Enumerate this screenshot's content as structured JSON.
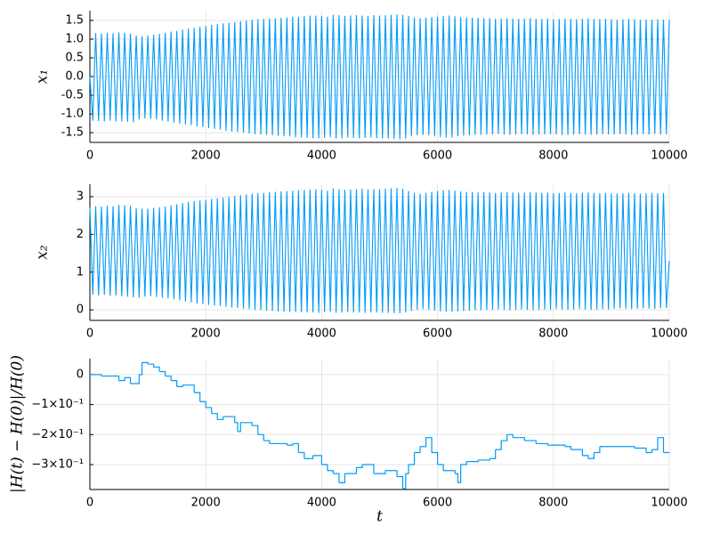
{
  "chart_data": [
    {
      "type": "line",
      "ylabel": "x₁",
      "color": "#009af9",
      "grid": true,
      "x": [
        0,
        50,
        100,
        150,
        200,
        250,
        300,
        350,
        400,
        450,
        500,
        550,
        600,
        650,
        700,
        750,
        800,
        850,
        900,
        950,
        1000,
        1050,
        1100,
        1150,
        1200,
        1250,
        1300,
        1350,
        1400,
        1450,
        1500,
        1550,
        1600,
        1650,
        1700,
        1750,
        1800,
        1850,
        1900,
        1950,
        2000,
        2050,
        2100,
        2150,
        2200,
        2250,
        2300,
        2350,
        2400,
        2450,
        2500,
        2550,
        2600,
        2650,
        2700,
        2750,
        2800,
        2850,
        2900,
        2950,
        3000,
        3050,
        3100,
        3150,
        3200,
        3250,
        3300,
        3350,
        3400,
        3450,
        3500,
        3550,
        3600,
        3650,
        3700,
        3750,
        3800,
        3850,
        3900,
        3950,
        4000,
        4050,
        4100,
        4150,
        4200,
        4250,
        4300,
        4350,
        4400,
        4450,
        4500,
        4550,
        4600,
        4650,
        4700,
        4750,
        4800,
        4850,
        4900,
        4950,
        5000,
        5050,
        5100,
        5150,
        5200,
        5250,
        5300,
        5350,
        5400,
        5450,
        5500,
        5550,
        5600,
        5650,
        5700,
        5750,
        5800,
        5850,
        5900,
        5950,
        6000,
        6050,
        6100,
        6150,
        6200,
        6250,
        6300,
        6350,
        6400,
        6450,
        6500,
        6550,
        6600,
        6650,
        6700,
        6750,
        6800,
        6850,
        6900,
        6950,
        7000,
        7050,
        7100,
        7150,
        7200,
        7250,
        7300,
        7350,
        7400,
        7450,
        7500,
        7550,
        7600,
        7650,
        7700,
        7750,
        7800,
        7850,
        7900,
        7950,
        8000,
        8050,
        8100,
        8150,
        8200,
        8250,
        8300,
        8350,
        8400,
        8450,
        8500,
        8550,
        8600,
        8650,
        8700,
        8750,
        8800,
        8850,
        8900,
        8950,
        9000,
        9050,
        9100,
        9150,
        9200,
        9250,
        9300,
        9350,
        9400,
        9450,
        9500,
        9550,
        9600,
        9650,
        9700,
        9750,
        9800,
        9850,
        9900,
        9950,
        10000
      ],
      "values": [
        0,
        -1.18,
        1.16,
        -1.19,
        1.15,
        -1.2,
        1.17,
        -1.18,
        1.16,
        -1.2,
        1.18,
        -1.2,
        1.17,
        -1.21,
        1.15,
        -1.22,
        1.1,
        -1.15,
        1.08,
        -1.12,
        1.1,
        -1.13,
        1.12,
        -1.15,
        1.14,
        -1.18,
        1.17,
        -1.2,
        1.2,
        -1.23,
        1.22,
        -1.26,
        1.25,
        -1.28,
        1.28,
        -1.3,
        1.3,
        -1.33,
        1.33,
        -1.35,
        1.35,
        -1.38,
        1.38,
        -1.4,
        1.4,
        -1.42,
        1.42,
        -1.45,
        1.44,
        -1.47,
        1.46,
        -1.48,
        1.48,
        -1.5,
        1.5,
        -1.52,
        1.52,
        -1.54,
        1.53,
        -1.55,
        1.54,
        -1.56,
        1.55,
        -1.57,
        1.56,
        -1.58,
        1.57,
        -1.6,
        1.58,
        -1.6,
        1.6,
        -1.62,
        1.6,
        -1.63,
        1.62,
        -1.64,
        1.63,
        -1.65,
        1.63,
        -1.65,
        1.62,
        -1.64,
        1.6,
        -1.62,
        1.65,
        -1.66,
        1.64,
        -1.65,
        1.62,
        -1.63,
        1.63,
        -1.64,
        1.64,
        -1.65,
        1.63,
        -1.64,
        1.62,
        -1.63,
        1.64,
        -1.65,
        1.63,
        -1.65,
        1.64,
        -1.66,
        1.65,
        -1.67,
        1.66,
        -1.68,
        1.65,
        -1.66,
        1.62,
        -1.6,
        1.58,
        -1.57,
        1.56,
        -1.56,
        1.57,
        -1.57,
        1.59,
        -1.6,
        1.6,
        -1.62,
        1.62,
        -1.63,
        1.63,
        -1.63,
        1.61,
        -1.6,
        1.59,
        -1.58,
        1.58,
        -1.57,
        1.57,
        -1.56,
        1.57,
        -1.56,
        1.56,
        -1.55,
        1.56,
        -1.55,
        1.55,
        -1.54,
        1.55,
        -1.55,
        1.56,
        -1.56,
        1.55,
        -1.55,
        1.54,
        -1.54,
        1.55,
        -1.55,
        1.56,
        -1.56,
        1.55,
        -1.55,
        1.54,
        -1.55,
        1.55,
        -1.55,
        1.53,
        -1.55,
        1.54,
        -1.56,
        1.55,
        -1.56,
        1.54,
        -1.55,
        1.53,
        -1.54,
        1.54,
        -1.55,
        1.55,
        -1.56,
        1.54,
        -1.55,
        1.53,
        -1.54,
        1.54,
        -1.55,
        1.53,
        -1.55,
        1.52,
        -1.54,
        1.53,
        -1.55,
        1.54,
        -1.56,
        1.53,
        -1.55,
        1.52,
        -1.54,
        1.53,
        -1.55,
        1.52,
        -1.53,
        1.53,
        -1.55,
        1.52,
        -1.54,
        1.52
      ],
      "xlim": [
        0,
        10000
      ],
      "xticks": [
        0,
        2000,
        4000,
        6000,
        8000,
        10000
      ],
      "ylim": [
        -1.76,
        1.76
      ],
      "yticks": [
        1.5,
        {
          "value": 1,
          "label": "1.0"
        },
        0.5,
        {
          "value": 0,
          "label": "0.0"
        },
        -0.5,
        {
          "value": -1,
          "label": "-1.0"
        },
        -1.5
      ]
    },
    {
      "type": "line",
      "ylabel": "x₂",
      "color": "#009af9",
      "grid": true,
      "x": [
        0,
        50,
        100,
        150,
        200,
        250,
        300,
        350,
        400,
        450,
        500,
        550,
        600,
        650,
        700,
        750,
        800,
        850,
        900,
        950,
        1000,
        1050,
        1100,
        1150,
        1200,
        1250,
        1300,
        1350,
        1400,
        1450,
        1500,
        1550,
        1600,
        1650,
        1700,
        1750,
        1800,
        1850,
        1900,
        1950,
        2000,
        2050,
        2100,
        2150,
        2200,
        2250,
        2300,
        2350,
        2400,
        2450,
        2500,
        2550,
        2600,
        2650,
        2700,
        2750,
        2800,
        2850,
        2900,
        2950,
        3000,
        3050,
        3100,
        3150,
        3200,
        3250,
        3300,
        3350,
        3400,
        3450,
        3500,
        3550,
        3600,
        3650,
        3700,
        3750,
        3800,
        3850,
        3900,
        3950,
        4000,
        4050,
        4100,
        4150,
        4200,
        4250,
        4300,
        4350,
        4400,
        4450,
        4500,
        4550,
        4600,
        4650,
        4700,
        4750,
        4800,
        4850,
        4900,
        4950,
        5000,
        5050,
        5100,
        5150,
        5200,
        5250,
        5300,
        5350,
        5400,
        5450,
        5500,
        5550,
        5600,
        5650,
        5700,
        5750,
        5800,
        5850,
        5900,
        5950,
        6000,
        6050,
        6100,
        6150,
        6200,
        6250,
        6300,
        6350,
        6400,
        6450,
        6500,
        6550,
        6600,
        6650,
        6700,
        6750,
        6800,
        6850,
        6900,
        6950,
        7000,
        7050,
        7100,
        7150,
        7200,
        7250,
        7300,
        7350,
        7400,
        7450,
        7500,
        7550,
        7600,
        7650,
        7700,
        7750,
        7800,
        7850,
        7900,
        7950,
        8000,
        8050,
        8100,
        8150,
        8200,
        8250,
        8300,
        8350,
        8400,
        8450,
        8500,
        8550,
        8600,
        8650,
        8700,
        8750,
        8800,
        8850,
        8900,
        8950,
        9000,
        9050,
        9100,
        9150,
        9200,
        9250,
        9300,
        9350,
        9400,
        9450,
        9500,
        9550,
        9600,
        9650,
        9700,
        9750,
        9800,
        9850,
        9900,
        9950,
        10000
      ],
      "values": [
        2.7,
        0.4,
        2.75,
        0.38,
        2.74,
        0.4,
        2.76,
        0.37,
        2.75,
        0.38,
        2.78,
        0.36,
        2.77,
        0.35,
        2.76,
        0.33,
        2.7,
        0.32,
        2.68,
        0.35,
        2.68,
        0.36,
        2.7,
        0.34,
        2.72,
        0.32,
        2.74,
        0.3,
        2.77,
        0.28,
        2.8,
        0.25,
        2.83,
        0.22,
        2.86,
        0.2,
        2.88,
        0.17,
        2.9,
        0.15,
        2.92,
        0.13,
        2.94,
        0.11,
        2.96,
        0.1,
        2.98,
        0.08,
        3.0,
        0.06,
        3.02,
        0.05,
        3.04,
        0.03,
        3.06,
        0.02,
        3.08,
        0.0,
        3.1,
        -0.01,
        3.1,
        -0.02,
        3.12,
        -0.03,
        3.13,
        -0.04,
        3.14,
        -0.05,
        3.15,
        -0.05,
        3.16,
        -0.06,
        3.17,
        -0.06,
        3.18,
        -0.07,
        3.19,
        -0.07,
        3.2,
        -0.08,
        3.18,
        -0.06,
        3.16,
        -0.05,
        3.22,
        -0.08,
        3.2,
        -0.07,
        3.18,
        -0.06,
        3.19,
        -0.07,
        3.2,
        -0.07,
        3.21,
        -0.08,
        3.19,
        -0.07,
        3.2,
        -0.07,
        3.2,
        -0.08,
        3.21,
        -0.08,
        3.22,
        -0.09,
        3.23,
        -0.09,
        3.21,
        -0.07,
        3.15,
        -0.03,
        3.1,
        0.0,
        3.08,
        0.02,
        3.1,
        0.0,
        3.13,
        -0.02,
        3.15,
        -0.04,
        3.17,
        -0.05,
        3.18,
        -0.05,
        3.16,
        -0.04,
        3.14,
        -0.03,
        3.13,
        -0.02,
        3.12,
        -0.01,
        3.11,
        -0.01,
        3.12,
        0.0,
        3.11,
        0.0,
        3.1,
        0.01,
        3.11,
        0.0,
        3.12,
        -0.01,
        3.11,
        0.0,
        3.1,
        0.01,
        3.11,
        0.0,
        3.12,
        -0.01,
        3.11,
        0.0,
        3.1,
        0.01,
        3.11,
        0.0,
        3.09,
        0.02,
        3.1,
        0.01,
        3.11,
        0.0,
        3.1,
        0.01,
        3.09,
        0.02,
        3.1,
        0.01,
        3.11,
        0.0,
        3.1,
        0.01,
        3.09,
        0.02,
        3.1,
        0.01,
        3.09,
        0.03,
        3.08,
        0.04,
        3.09,
        0.03,
        3.1,
        0.02,
        3.09,
        0.03,
        3.08,
        0.04,
        3.09,
        0.03,
        3.1,
        0.02,
        3.09,
        0.04,
        3.1,
        0.05,
        1.3
      ],
      "xlim": [
        0,
        10000
      ],
      "xticks": [
        0,
        2000,
        4000,
        6000,
        8000,
        10000
      ],
      "ylim": [
        -0.28,
        3.33
      ],
      "yticks": [
        0,
        1,
        2,
        3
      ]
    },
    {
      "type": "line",
      "step": "post",
      "ylabel": "|H(t) − H(0)|/H(0)",
      "xlabel": "t",
      "color": "#009af9",
      "grid": true,
      "x": [
        0,
        200,
        500,
        600,
        700,
        850,
        900,
        1000,
        1100,
        1200,
        1300,
        1400,
        1500,
        1600,
        1800,
        1900,
        2000,
        2100,
        2200,
        2300,
        2500,
        2550,
        2600,
        2800,
        2900,
        3000,
        3100,
        3400,
        3500,
        3600,
        3700,
        3850,
        4000,
        4100,
        4200,
        4300,
        4400,
        4600,
        4700,
        4900,
        5100,
        5300,
        5400,
        5450,
        5500,
        5600,
        5700,
        5800,
        5900,
        6000,
        6100,
        6300,
        6350,
        6400,
        6500,
        6700,
        6900,
        7000,
        7100,
        7200,
        7300,
        7500,
        7700,
        7900,
        8200,
        8300,
        8500,
        8600,
        8700,
        8800,
        9200,
        9400,
        9600,
        9700,
        9800,
        9900,
        10000
      ],
      "values": [
        0,
        -0.005,
        -0.02,
        -0.01,
        -0.03,
        0.0,
        0.04,
        0.035,
        0.025,
        0.01,
        -0.005,
        -0.02,
        -0.04,
        -0.035,
        -0.06,
        -0.09,
        -0.11,
        -0.13,
        -0.15,
        -0.14,
        -0.16,
        -0.19,
        -0.16,
        -0.17,
        -0.2,
        -0.22,
        -0.23,
        -0.235,
        -0.23,
        -0.26,
        -0.28,
        -0.27,
        -0.3,
        -0.32,
        -0.33,
        -0.36,
        -0.33,
        -0.31,
        -0.3,
        -0.33,
        -0.32,
        -0.34,
        -0.38,
        -0.33,
        -0.3,
        -0.26,
        -0.24,
        -0.21,
        -0.26,
        -0.3,
        -0.32,
        -0.33,
        -0.36,
        -0.3,
        -0.29,
        -0.285,
        -0.28,
        -0.25,
        -0.22,
        -0.2,
        -0.21,
        -0.22,
        -0.23,
        -0.235,
        -0.24,
        -0.25,
        -0.27,
        -0.28,
        -0.26,
        -0.24,
        -0.24,
        -0.245,
        -0.26,
        -0.25,
        -0.21,
        -0.26,
        -0.26
      ],
      "xlim": [
        0,
        10000
      ],
      "xticks": [
        0,
        2000,
        4000,
        6000,
        8000,
        10000
      ],
      "ylim": [
        -0.383,
        0.053
      ],
      "yticks": [
        0,
        {
          "value": -0.1,
          "label": "−1×10⁻¹"
        },
        {
          "value": -0.2,
          "label": "−2×10⁻¹"
        },
        {
          "value": -0.3,
          "label": "−3×10⁻¹"
        }
      ]
    }
  ]
}
